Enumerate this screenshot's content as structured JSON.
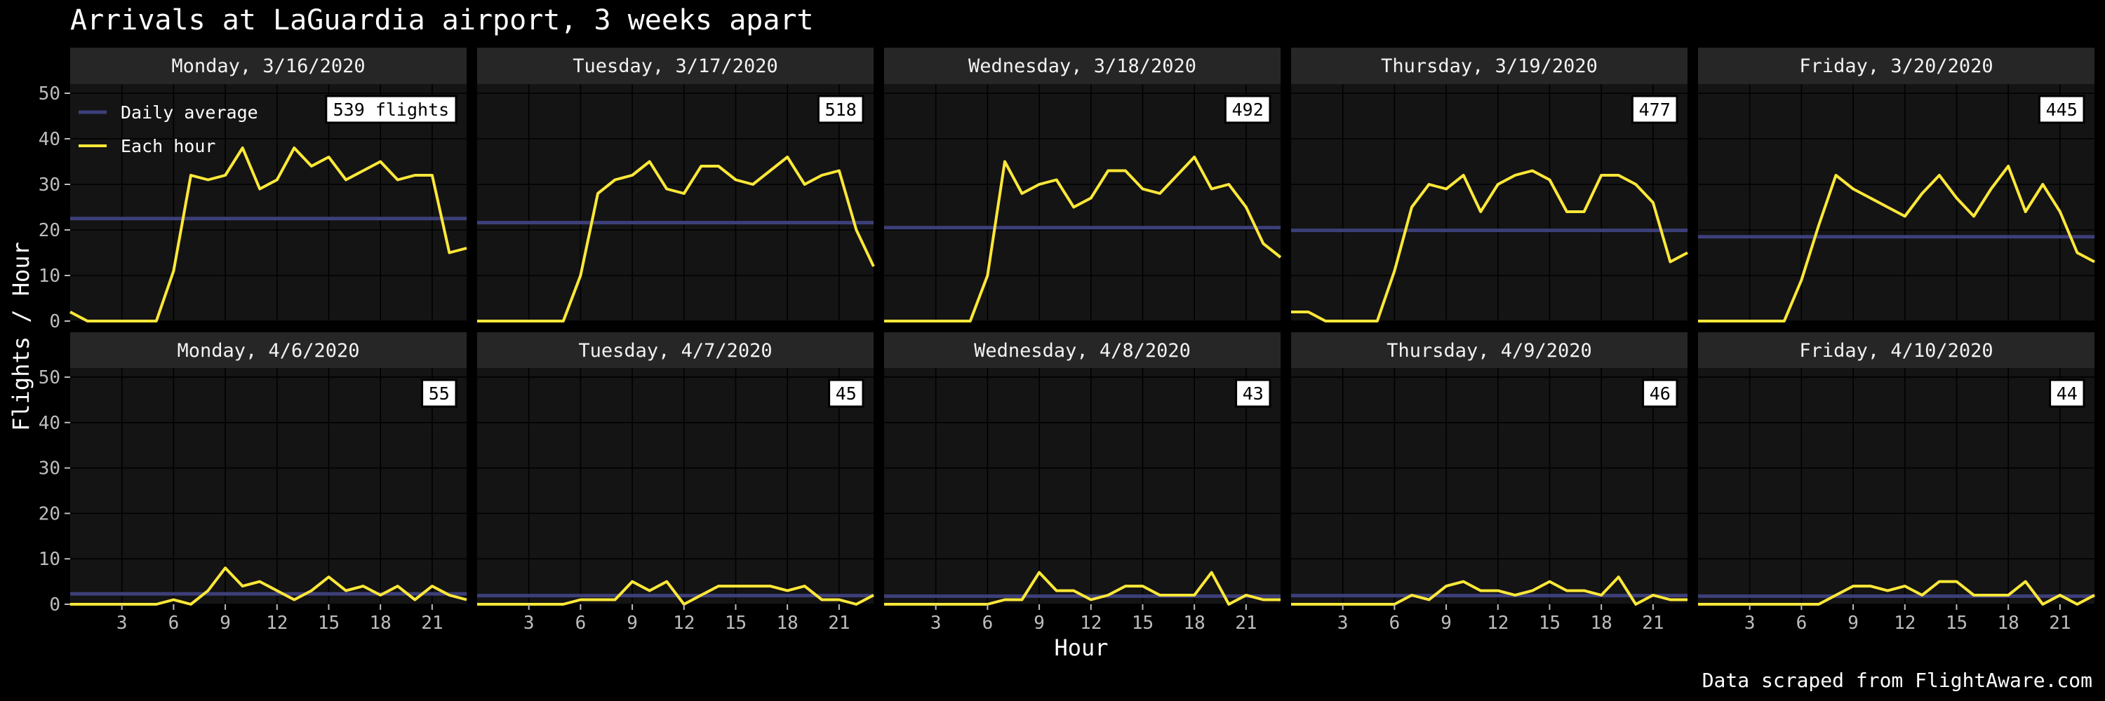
{
  "title": "Arrivals at LaGuardia airport, 3 weeks apart",
  "caption": "Data scraped from FlightAware.com",
  "colors": {
    "background": "#000000",
    "panel": "#141414",
    "strip": "#262626",
    "average": "#3d3f7a",
    "hourly": "#ffe838"
  },
  "chart_data": {
    "type": "line",
    "layout": "facet grid, 2 rows x 5 columns",
    "xlabel": "Hour",
    "ylabel": "Flights / Hour",
    "xlim": [
      0,
      23
    ],
    "ylim": [
      0,
      52
    ],
    "x_ticks": [
      "3",
      "6",
      "9",
      "12",
      "15",
      "18",
      "21"
    ],
    "y_ticks": [
      "0",
      "10",
      "20",
      "30",
      "40",
      "50"
    ],
    "grid": true,
    "legend": {
      "placement": "top-left of first panel",
      "entries": [
        "Daily average",
        "Each hour"
      ]
    },
    "hours": [
      0,
      1,
      2,
      3,
      4,
      5,
      6,
      7,
      8,
      9,
      10,
      11,
      12,
      13,
      14,
      15,
      16,
      17,
      18,
      19,
      20,
      21,
      22,
      23
    ],
    "panels": [
      {
        "label": "Monday, 3/16/2020",
        "total": "539 flights",
        "average": 22.5,
        "values": [
          2,
          0,
          0,
          0,
          0,
          0,
          11,
          32,
          31,
          32,
          38,
          29,
          31,
          38,
          34,
          36,
          31,
          33,
          35,
          31,
          32,
          32,
          15,
          16
        ]
      },
      {
        "label": "Tuesday, 3/17/2020",
        "total": "518",
        "average": 21.6,
        "values": [
          0,
          0,
          0,
          0,
          0,
          0,
          10,
          28,
          31,
          32,
          35,
          29,
          28,
          34,
          34,
          31,
          30,
          33,
          36,
          30,
          32,
          33,
          20,
          12
        ]
      },
      {
        "label": "Wednesday, 3/18/2020",
        "total": "492",
        "average": 20.5,
        "values": [
          0,
          0,
          0,
          0,
          0,
          0,
          10,
          35,
          28,
          30,
          31,
          25,
          27,
          33,
          33,
          29,
          28,
          32,
          36,
          29,
          30,
          25,
          17,
          14
        ]
      },
      {
        "label": "Thursday, 3/19/2020",
        "total": "477",
        "average": 19.9,
        "values": [
          2,
          2,
          0,
          0,
          0,
          0,
          11,
          25,
          30,
          29,
          32,
          24,
          30,
          32,
          33,
          31,
          24,
          24,
          32,
          32,
          30,
          26,
          13,
          15
        ]
      },
      {
        "label": "Friday, 3/20/2020",
        "total": "445",
        "average": 18.5,
        "values": [
          0,
          0,
          0,
          0,
          0,
          0,
          9,
          21,
          32,
          29,
          27,
          25,
          23,
          28,
          32,
          27,
          23,
          29,
          34,
          24,
          30,
          24,
          15,
          13
        ]
      },
      {
        "label": "Monday, 4/6/2020",
        "total": "55",
        "average": 2.3,
        "values": [
          0,
          0,
          0,
          0,
          0,
          0,
          1,
          0,
          3,
          8,
          4,
          5,
          3,
          1,
          3,
          6,
          3,
          4,
          2,
          4,
          1,
          4,
          2,
          1
        ]
      },
      {
        "label": "Tuesday, 4/7/2020",
        "total": "45",
        "average": 1.9,
        "values": [
          0,
          0,
          0,
          0,
          0,
          0,
          1,
          1,
          1,
          5,
          3,
          5,
          0,
          2,
          4,
          4,
          4,
          4,
          3,
          4,
          1,
          1,
          0,
          2
        ]
      },
      {
        "label": "Wednesday, 4/8/2020",
        "total": "43",
        "average": 1.8,
        "values": [
          0,
          0,
          0,
          0,
          0,
          0,
          0,
          1,
          1,
          7,
          3,
          3,
          1,
          2,
          4,
          4,
          2,
          2,
          2,
          7,
          0,
          2,
          1,
          1
        ]
      },
      {
        "label": "Thursday, 4/9/2020",
        "total": "46",
        "average": 1.9,
        "values": [
          0,
          0,
          0,
          0,
          0,
          0,
          0,
          2,
          1,
          4,
          5,
          3,
          3,
          2,
          3,
          5,
          3,
          3,
          2,
          6,
          0,
          2,
          1,
          1
        ]
      },
      {
        "label": "Friday, 4/10/2020",
        "total": "44",
        "average": 1.8,
        "values": [
          0,
          0,
          0,
          0,
          0,
          0,
          0,
          0,
          2,
          4,
          4,
          3,
          4,
          2,
          5,
          5,
          2,
          2,
          2,
          5,
          0,
          2,
          0,
          2
        ]
      }
    ]
  }
}
